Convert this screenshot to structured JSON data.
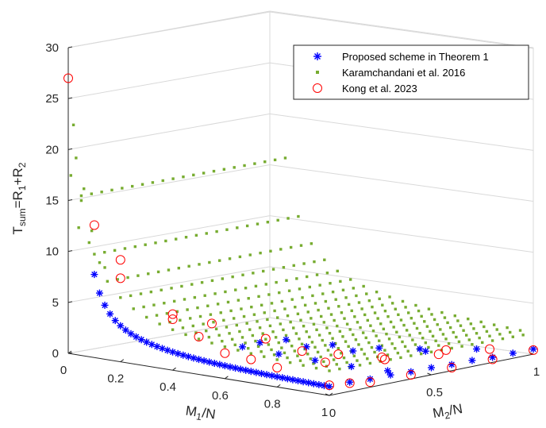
{
  "chart_data": {
    "type": "scatter3d",
    "zlabel": {
      "main": "T",
      "sub1": "sum",
      "eq": "=R",
      "sub2": "1",
      "plus": "+R",
      "sub3": "2"
    },
    "xlabel": {
      "main": "M",
      "sub": "1",
      "tail": "/N"
    },
    "ylabel": {
      "main": "M",
      "sub": "2",
      "tail": "/N"
    },
    "x_ticks": [
      "0",
      "0.2",
      "0.4",
      "0.6",
      "0.8",
      "1"
    ],
    "y_ticks": [
      "0",
      "0.5",
      "1"
    ],
    "z_ticks": [
      "0",
      "5",
      "10",
      "15",
      "20",
      "25",
      "30"
    ],
    "xlim": [
      0,
      1
    ],
    "ylim": [
      0,
      1
    ],
    "zlim": [
      0,
      30
    ],
    "legend": [
      {
        "label": "Proposed scheme in Theorem 1",
        "marker": "star",
        "color": "#0000ff"
      },
      {
        "label": "Karamchandani et al. 2016",
        "marker": "square",
        "color": "#77ac30"
      },
      {
        "label": "Kong et al. 2023",
        "marker": "circle",
        "color": "#ff0000"
      }
    ],
    "series": [
      {
        "name": "Proposed scheme in Theorem 1",
        "description": "sum rate on grid of M1/N and M2/N; z = 0.3/(M1+0.02) + 0.3/(M2+0.02) style surface from about 8 at M1=0.1 down to about 1 at M1=M2=1",
        "points": [
          [
            0.1,
            0.0,
            7.9
          ],
          [
            0.12,
            0.0,
            6.6
          ],
          [
            0.15,
            0.0,
            5.7
          ],
          [
            0.18,
            0.0,
            5.0
          ],
          [
            0.2,
            0.0,
            4.6
          ],
          [
            0.22,
            0.0,
            4.3
          ],
          [
            0.25,
            0.0,
            4.0
          ],
          [
            0.3,
            0.0,
            3.6
          ],
          [
            0.35,
            0.0,
            3.3
          ],
          [
            0.4,
            0.0,
            3.0
          ],
          [
            0.45,
            0.0,
            2.8
          ],
          [
            0.5,
            0.0,
            2.6
          ],
          [
            0.55,
            0.0,
            2.4
          ],
          [
            0.6,
            0.0,
            2.2
          ],
          [
            0.65,
            0.0,
            2.0
          ],
          [
            0.7,
            0.0,
            1.8
          ],
          [
            0.75,
            0.0,
            1.6
          ],
          [
            0.8,
            0.0,
            1.5
          ],
          [
            0.85,
            0.0,
            1.3
          ],
          [
            0.9,
            0.0,
            1.2
          ],
          [
            1.0,
            0.0,
            1.0
          ],
          [
            1.0,
            0.1,
            0.9
          ],
          [
            1.0,
            0.2,
            0.8
          ],
          [
            1.0,
            0.3,
            0.8
          ],
          [
            1.0,
            0.4,
            0.7
          ],
          [
            1.0,
            0.5,
            0.7
          ],
          [
            1.0,
            0.6,
            0.6
          ],
          [
            1.0,
            0.7,
            0.6
          ],
          [
            1.0,
            0.8,
            0.5
          ],
          [
            1.0,
            0.9,
            0.5
          ],
          [
            1.0,
            1.0,
            0.5
          ],
          [
            0.7,
            0.5,
            1.1
          ],
          [
            0.8,
            0.7,
            0.9
          ],
          [
            0.9,
            0.85,
            0.7
          ],
          [
            0.6,
            0.4,
            1.5
          ],
          [
            0.5,
            0.3,
            1.9
          ]
        ]
      },
      {
        "name": "Karamchandani et al. 2016",
        "description": "dense grid, rows of points along M2 at each M1 from 0.05 to 1"
      },
      {
        "name": "Kong et al. 2023",
        "points": [
          [
            0.0,
            0.0,
            27
          ],
          [
            0.1,
            0.0,
            13
          ],
          [
            0.2,
            0.0,
            10
          ],
          [
            0.2,
            0.0,
            8.2
          ],
          [
            0.4,
            0.0,
            5.5
          ],
          [
            0.4,
            0.0,
            5.0
          ],
          [
            0.5,
            0.0,
            3.7
          ],
          [
            0.55,
            0.0,
            5.2
          ],
          [
            0.6,
            0.0,
            2.5
          ],
          [
            0.7,
            0.0,
            2.3
          ],
          [
            0.8,
            0.0,
            1.9
          ],
          [
            0.6,
            0.2,
            3.1
          ],
          [
            0.7,
            0.25,
            2.1
          ],
          [
            0.8,
            0.3,
            2.0
          ],
          [
            0.9,
            0.4,
            1.5
          ],
          [
            1.0,
            0.0,
            1.0
          ],
          [
            1.0,
            0.1,
            0.8
          ],
          [
            1.0,
            0.2,
            0.5
          ],
          [
            1.0,
            0.4,
            0.4
          ],
          [
            1.0,
            0.6,
            0.3
          ],
          [
            1.0,
            0.8,
            0.3
          ],
          [
            1.0,
            1.0,
            0.4
          ],
          [
            0.75,
            0.3,
            1.0
          ],
          [
            0.85,
            0.45,
            1.3
          ],
          [
            0.95,
            0.6,
            1.4
          ],
          [
            0.9,
            0.7,
            1.2
          ],
          [
            0.95,
            0.85,
            0.9
          ]
        ]
      }
    ]
  }
}
